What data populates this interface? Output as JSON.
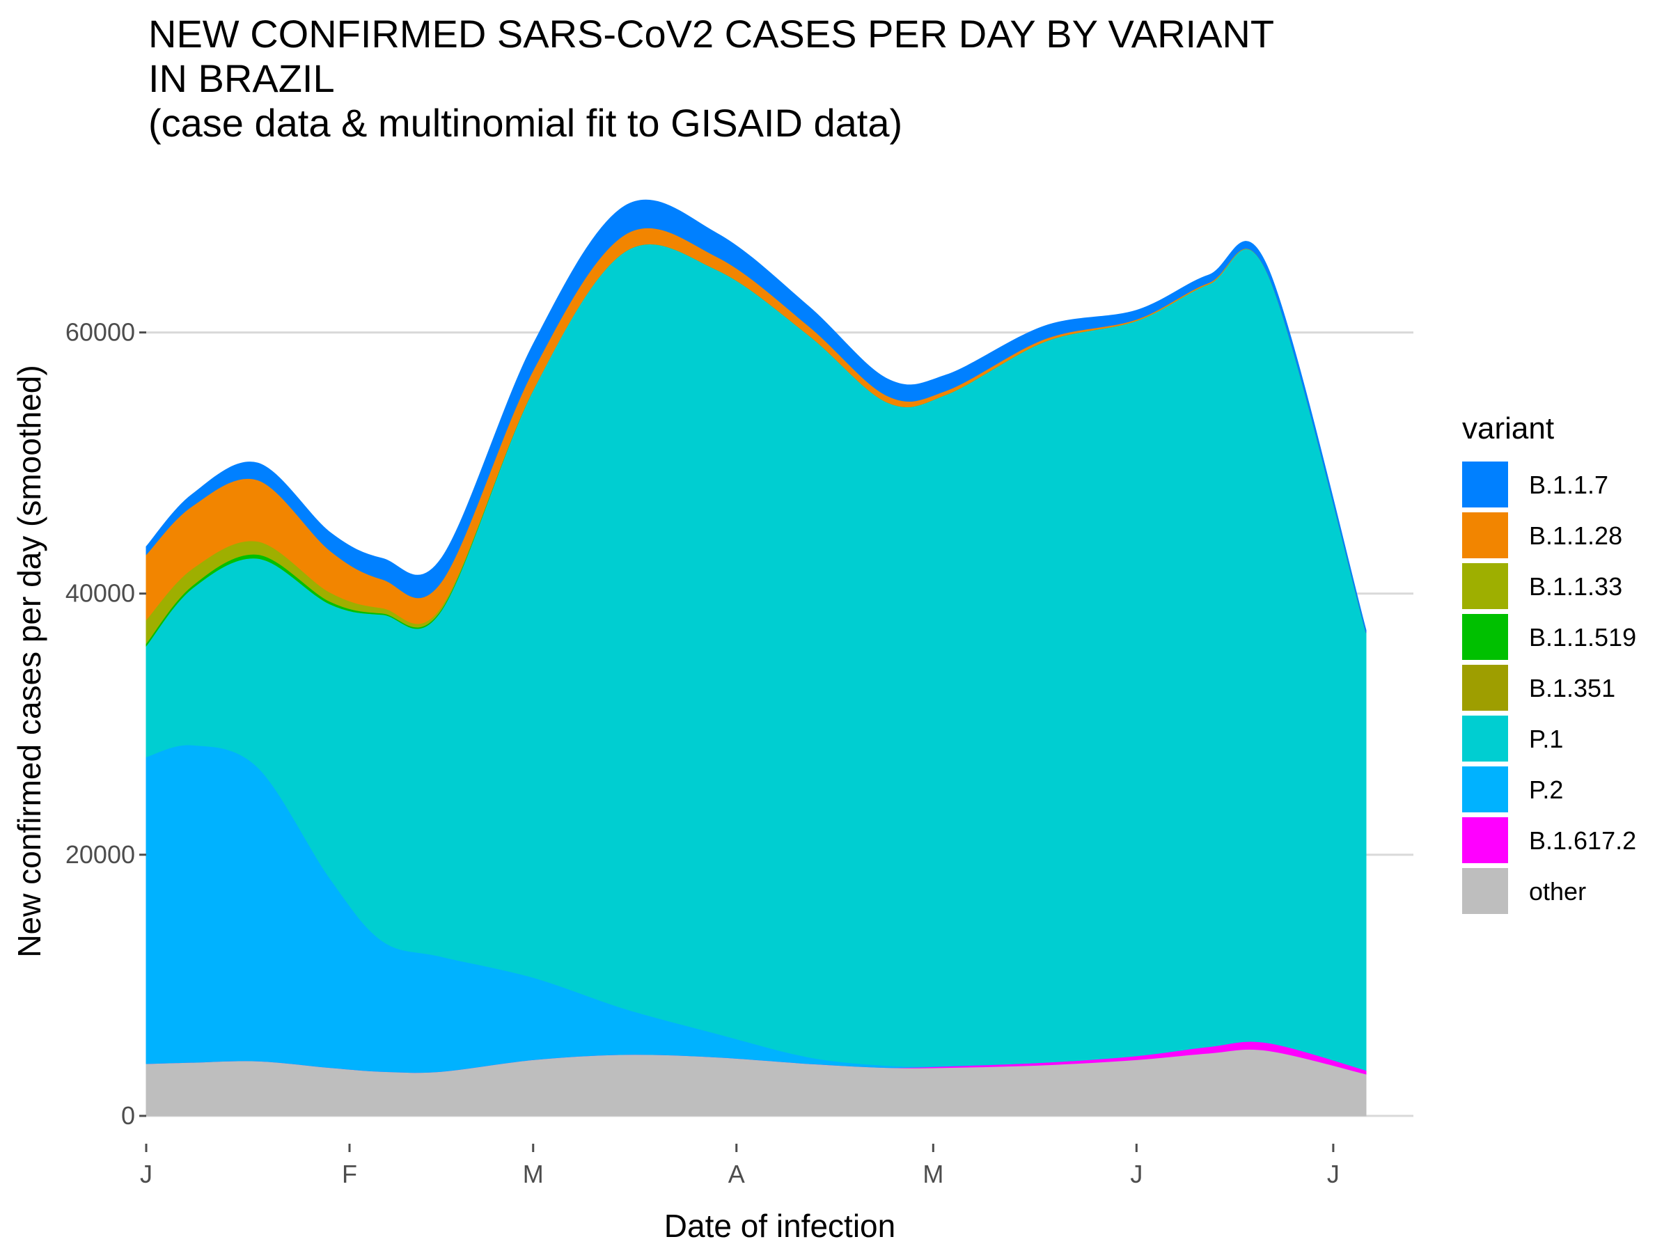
{
  "chart_data": {
    "type": "area",
    "stacked": true,
    "title_lines": [
      "NEW CONFIRMED SARS-CoV2 CASES PER DAY BY VARIANT",
      "IN BRAZIL",
      "(case data & multinomial fit to GISAID data)"
    ],
    "xlabel": "Date of infection",
    "ylabel": "New confirmed cases per day (smoothed)",
    "ylim": [
      0,
      70000
    ],
    "y_ticks": [
      0,
      20000,
      40000,
      60000
    ],
    "y_tick_labels": [
      "0",
      "20000",
      "40000",
      "60000"
    ],
    "x_domain": [
      "2021-01-01",
      "2021-07-06"
    ],
    "x_ticks": [
      "2021-01-01",
      "2021-02-01",
      "2021-03-01",
      "2021-04-01",
      "2021-05-01",
      "2021-06-01",
      "2021-07-01"
    ],
    "x_tick_labels": [
      "J",
      "F",
      "M",
      "A",
      "M",
      "J",
      "J"
    ],
    "grid": "horizontal",
    "legend": {
      "title": "variant",
      "position": "right"
    },
    "x": [
      "2021-01-01",
      "2021-01-08",
      "2021-01-18",
      "2021-01-29",
      "2021-02-06",
      "2021-02-15",
      "2021-03-01",
      "2021-03-15",
      "2021-03-29",
      "2021-04-12",
      "2021-04-24",
      "2021-05-03",
      "2021-05-18",
      "2021-06-01",
      "2021-06-12",
      "2021-06-21",
      "2021-07-06"
    ],
    "series": [
      {
        "name": "other",
        "color": "#BEBEBE",
        "values": [
          4000,
          4100,
          4200,
          3700,
          3400,
          3400,
          4300,
          4700,
          4500,
          4000,
          3700,
          3700,
          3900,
          4300,
          4800,
          5000,
          3200
        ]
      },
      {
        "name": "B.1.617.2",
        "color": "#FF00FF",
        "values": [
          0,
          0,
          0,
          0,
          0,
          0,
          0,
          0,
          0,
          0,
          0,
          100,
          200,
          300,
          500,
          600,
          300
        ]
      },
      {
        "name": "P.2",
        "color": "#00B2FF",
        "values": [
          23500,
          24300,
          22500,
          14500,
          10000,
          8800,
          6300,
          3500,
          1800,
          500,
          150,
          50,
          0,
          0,
          0,
          0,
          0
        ]
      },
      {
        "name": "P.1",
        "color": "#00CED1",
        "values": [
          8500,
          12000,
          16000,
          21000,
          25000,
          26500,
          45000,
          58000,
          58500,
          55300,
          50800,
          51400,
          55200,
          56300,
          58400,
          58900,
          33500
        ]
      },
      {
        "name": "B.1.351",
        "color": "#9E9E00",
        "values": [
          0,
          0,
          0,
          0,
          0,
          0,
          0,
          0,
          0,
          0,
          0,
          0,
          0,
          0,
          0,
          0,
          0
        ]
      },
      {
        "name": "B.1.1.519",
        "color": "#00C000",
        "values": [
          200,
          200,
          300,
          200,
          100,
          100,
          0,
          0,
          0,
          0,
          0,
          0,
          0,
          0,
          0,
          0,
          0
        ]
      },
      {
        "name": "B.1.1.33",
        "color": "#9EAF00",
        "values": [
          1800,
          1300,
          1000,
          700,
          400,
          200,
          0,
          0,
          0,
          0,
          0,
          0,
          0,
          0,
          0,
          0,
          0
        ]
      },
      {
        "name": "B.1.1.28",
        "color": "#F28500",
        "values": [
          5000,
          4800,
          4700,
          3200,
          2200,
          1900,
          1500,
          1300,
          1000,
          700,
          500,
          300,
          200,
          100,
          100,
          0,
          0
        ]
      },
      {
        "name": "B.1.1.7",
        "color": "#0080FF",
        "values": [
          600,
          900,
          1300,
          1400,
          1600,
          1800,
          2000,
          2200,
          1800,
          1500,
          1300,
          1200,
          1000,
          700,
          600,
          500,
          200
        ]
      }
    ],
    "legend_order": [
      "B.1.1.7",
      "B.1.1.28",
      "B.1.1.33",
      "B.1.1.519",
      "B.1.351",
      "P.1",
      "P.2",
      "B.1.617.2",
      "other"
    ]
  }
}
